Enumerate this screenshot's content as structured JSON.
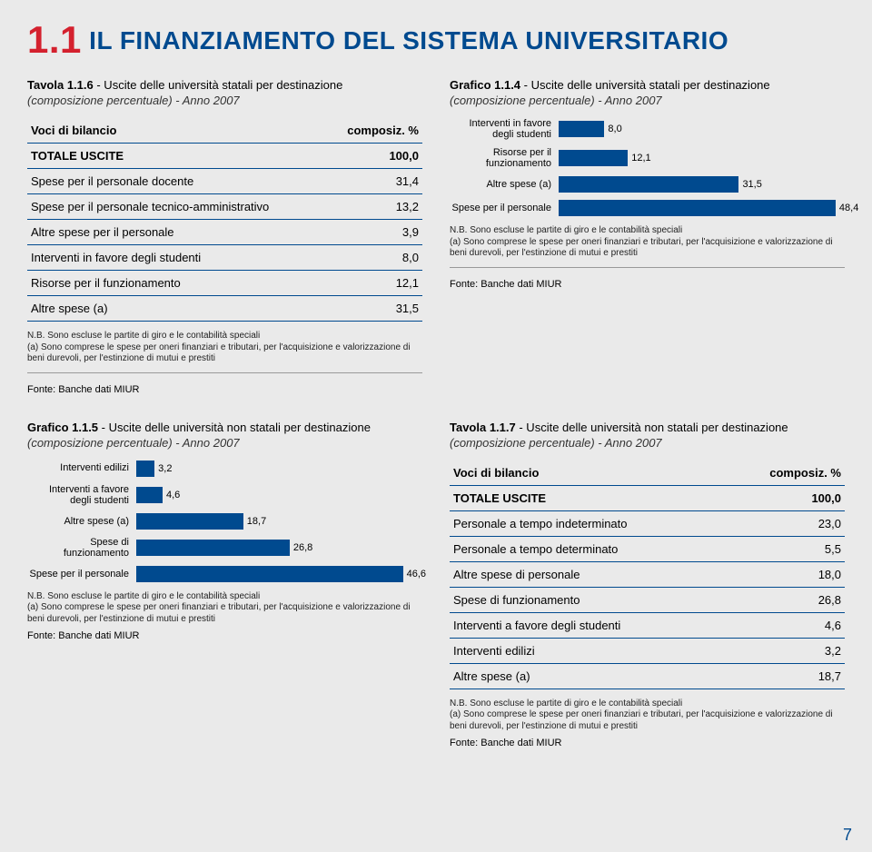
{
  "header": {
    "section_num": "1.1",
    "title": "IL FINANZIAMENTO DEL SISTEMA UNIVERSITARIO"
  },
  "colors": {
    "bar": "#004a8f",
    "accent_red": "#d4212e",
    "rule": "#004a8f",
    "background": "#eaeaea"
  },
  "tavola116": {
    "title_prefix": "Tavola 1.1.6",
    "title_rest": " - Uscite delle università statali per destinazione",
    "subtitle": "(composizione percentuale) - Anno 2007",
    "col1": "Voci di bilancio",
    "col2": "composiz. %",
    "rows": [
      {
        "label": "TOTALE USCITE",
        "value": "100,0",
        "total": true
      },
      {
        "label": "Spese per il personale docente",
        "value": "31,4"
      },
      {
        "label": "Spese per il personale tecnico-amministrativo",
        "value": "13,2"
      },
      {
        "label": "Altre spese per il personale",
        "value": "3,9"
      },
      {
        "label": "Interventi in favore degli studenti",
        "value": "8,0"
      },
      {
        "label": "Risorse per il funzionamento",
        "value": "12,1"
      },
      {
        "label": "Altre spese (a)",
        "value": "31,5"
      }
    ]
  },
  "grafico114": {
    "title_prefix": "Grafico 1.1.4",
    "title_rest": " - Uscite delle università statali per destinazione",
    "subtitle": "(composizione percentuale) - Anno 2007",
    "max": 50,
    "bars": [
      {
        "label": "Interventi in favore degli studenti",
        "value": 8.0,
        "disp": "8,0"
      },
      {
        "label": "Risorse per il funzionamento",
        "value": 12.1,
        "disp": "12,1"
      },
      {
        "label": "Altre spese (a)",
        "value": 31.5,
        "disp": "31,5"
      },
      {
        "label": "Spese per il personale",
        "value": 48.4,
        "disp": "48,4"
      }
    ]
  },
  "grafico115": {
    "title_prefix": "Grafico 1.1.5",
    "title_rest": " - Uscite delle università non statali per destinazione",
    "subtitle": "(composizione percentuale) - Anno 2007",
    "max": 50,
    "bars": [
      {
        "label": "Interventi edilizi",
        "value": 3.2,
        "disp": "3,2"
      },
      {
        "label": "Interventi a favore degli studenti",
        "value": 4.6,
        "disp": "4,6"
      },
      {
        "label": "Altre spese (a)",
        "value": 18.7,
        "disp": "18,7"
      },
      {
        "label": "Spese di funzionamento",
        "value": 26.8,
        "disp": "26,8"
      },
      {
        "label": "Spese per il personale",
        "value": 46.6,
        "disp": "46,6"
      }
    ]
  },
  "tavola117": {
    "title_prefix": "Tavola 1.1.7",
    "title_rest": " - Uscite delle università non statali per destinazione",
    "subtitle": "(composizione percentuale) - Anno 2007",
    "col1": "Voci di bilancio",
    "col2": "composiz. %",
    "rows": [
      {
        "label": "TOTALE USCITE",
        "value": "100,0",
        "total": true
      },
      {
        "label": "Personale a tempo indeterminato",
        "value": "23,0"
      },
      {
        "label": "Personale a tempo determinato",
        "value": "5,5"
      },
      {
        "label": "Altre spese di personale",
        "value": "18,0"
      },
      {
        "label": "Spese di funzionamento",
        "value": "26,8"
      },
      {
        "label": "Interventi a favore degli studenti",
        "value": "4,6"
      },
      {
        "label": "Interventi edilizi",
        "value": "3,2"
      },
      {
        "label": "Altre spese (a)",
        "value": "18,7"
      }
    ]
  },
  "note_line1": "N.B. Sono escluse le partite di giro e le contabilità speciali",
  "note_line2": "(a) Sono comprese le spese per oneri finanziari e tributari, per l'acquisizione e valorizzazione di beni durevoli, per l'estinzione di mutui e prestiti",
  "source": "Fonte: Banche dati MIUR",
  "page_number": "7"
}
